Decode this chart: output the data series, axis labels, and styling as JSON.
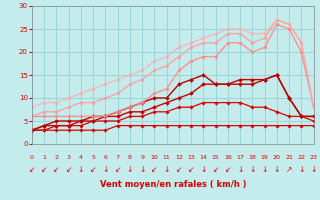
{
  "xlabel": "Vent moyen/en rafales ( km/h )",
  "xlim": [
    0,
    23
  ],
  "ylim": [
    0,
    30
  ],
  "xticks": [
    0,
    1,
    2,
    3,
    4,
    5,
    6,
    7,
    8,
    9,
    10,
    11,
    12,
    13,
    14,
    15,
    16,
    17,
    18,
    19,
    20,
    21,
    22,
    23
  ],
  "yticks": [
    0,
    5,
    10,
    15,
    20,
    25,
    30
  ],
  "bg_color": "#c5ecec",
  "grid_color": "#99d6d6",
  "lines": [
    {
      "x": [
        0,
        1,
        2,
        3,
        4,
        5,
        6,
        7,
        8,
        9,
        10,
        11,
        12,
        13,
        14,
        15,
        16,
        17,
        18,
        19,
        20,
        21,
        22,
        23
      ],
      "y": [
        3,
        3,
        3,
        3,
        3,
        3,
        3,
        4,
        4,
        4,
        4,
        4,
        4,
        4,
        4,
        4,
        4,
        4,
        4,
        4,
        4,
        4,
        4,
        4
      ],
      "color": "#dd0000",
      "alpha": 1.0,
      "lw": 0.9,
      "marker": "D",
      "ms": 1.8
    },
    {
      "x": [
        0,
        1,
        2,
        3,
        4,
        5,
        6,
        7,
        8,
        9,
        10,
        11,
        12,
        13,
        14,
        15,
        16,
        17,
        18,
        19,
        20,
        21,
        22,
        23
      ],
      "y": [
        3,
        3,
        4,
        4,
        4,
        5,
        5,
        5,
        6,
        6,
        7,
        7,
        8,
        8,
        9,
        9,
        9,
        9,
        8,
        8,
        7,
        6,
        6,
        5
      ],
      "color": "#dd0000",
      "alpha": 1.0,
      "lw": 0.9,
      "marker": "D",
      "ms": 1.8
    },
    {
      "x": [
        0,
        1,
        2,
        3,
        4,
        5,
        6,
        7,
        8,
        9,
        10,
        11,
        12,
        13,
        14,
        15,
        16,
        17,
        18,
        19,
        20,
        21,
        22,
        23
      ],
      "y": [
        3,
        4,
        4,
        4,
        5,
        5,
        6,
        6,
        7,
        7,
        8,
        9,
        10,
        11,
        13,
        13,
        13,
        14,
        14,
        14,
        15,
        10,
        6,
        6
      ],
      "color": "#cc0000",
      "alpha": 1.0,
      "lw": 1.0,
      "marker": "D",
      "ms": 2.0
    },
    {
      "x": [
        0,
        1,
        2,
        3,
        4,
        5,
        6,
        7,
        8,
        9,
        10,
        11,
        12,
        13,
        14,
        15,
        16,
        17,
        18,
        19,
        20,
        21,
        22,
        23
      ],
      "y": [
        3,
        4,
        5,
        5,
        5,
        6,
        6,
        7,
        8,
        9,
        10,
        10,
        13,
        14,
        15,
        13,
        13,
        13,
        13,
        14,
        15,
        10,
        6,
        6
      ],
      "color": "#bb0000",
      "alpha": 1.0,
      "lw": 1.0,
      "marker": "D",
      "ms": 2.0
    },
    {
      "x": [
        0,
        1,
        2,
        3,
        4,
        5,
        6,
        7,
        8,
        9,
        10,
        11,
        12,
        13,
        14,
        15,
        16,
        17,
        18,
        19,
        20,
        21,
        22,
        23
      ],
      "y": [
        6,
        6,
        6,
        6,
        6,
        6,
        6,
        7,
        8,
        9,
        11,
        12,
        16,
        18,
        19,
        19,
        22,
        22,
        20,
        21,
        26,
        25,
        20,
        8
      ],
      "color": "#ff8888",
      "alpha": 0.9,
      "lw": 1.0,
      "marker": "o",
      "ms": 2.0
    },
    {
      "x": [
        0,
        1,
        2,
        3,
        4,
        5,
        6,
        7,
        8,
        9,
        10,
        11,
        12,
        13,
        14,
        15,
        16,
        17,
        18,
        19,
        20,
        21,
        22,
        23
      ],
      "y": [
        6,
        7,
        7,
        8,
        9,
        9,
        10,
        11,
        13,
        14,
        16,
        17,
        19,
        21,
        22,
        22,
        24,
        24,
        22,
        23,
        27,
        26,
        22,
        8
      ],
      "color": "#ff9999",
      "alpha": 0.85,
      "lw": 1.0,
      "marker": "o",
      "ms": 2.0
    },
    {
      "x": [
        0,
        1,
        2,
        3,
        4,
        5,
        6,
        7,
        8,
        9,
        10,
        11,
        12,
        13,
        14,
        15,
        16,
        17,
        18,
        19,
        20,
        21,
        22,
        23
      ],
      "y": [
        8,
        9,
        9,
        10,
        11,
        12,
        13,
        14,
        15,
        16,
        18,
        19,
        21,
        22,
        23,
        24,
        25,
        25,
        24,
        24,
        27,
        26,
        22,
        8
      ],
      "color": "#ffaaaa",
      "alpha": 0.75,
      "lw": 1.0,
      "marker": "o",
      "ms": 2.0
    }
  ],
  "wind_arrows": [
    "↙",
    "↙",
    "↙",
    "↙",
    "↓",
    "↙",
    "↓",
    "↙",
    "↓",
    "↓",
    "↙",
    "↓",
    "↙",
    "↙",
    "↓",
    "↙",
    "↙",
    "↓",
    "↓",
    "↓",
    "↓",
    "↗",
    "↓",
    "↓"
  ],
  "arrow_color": "#dd0000"
}
